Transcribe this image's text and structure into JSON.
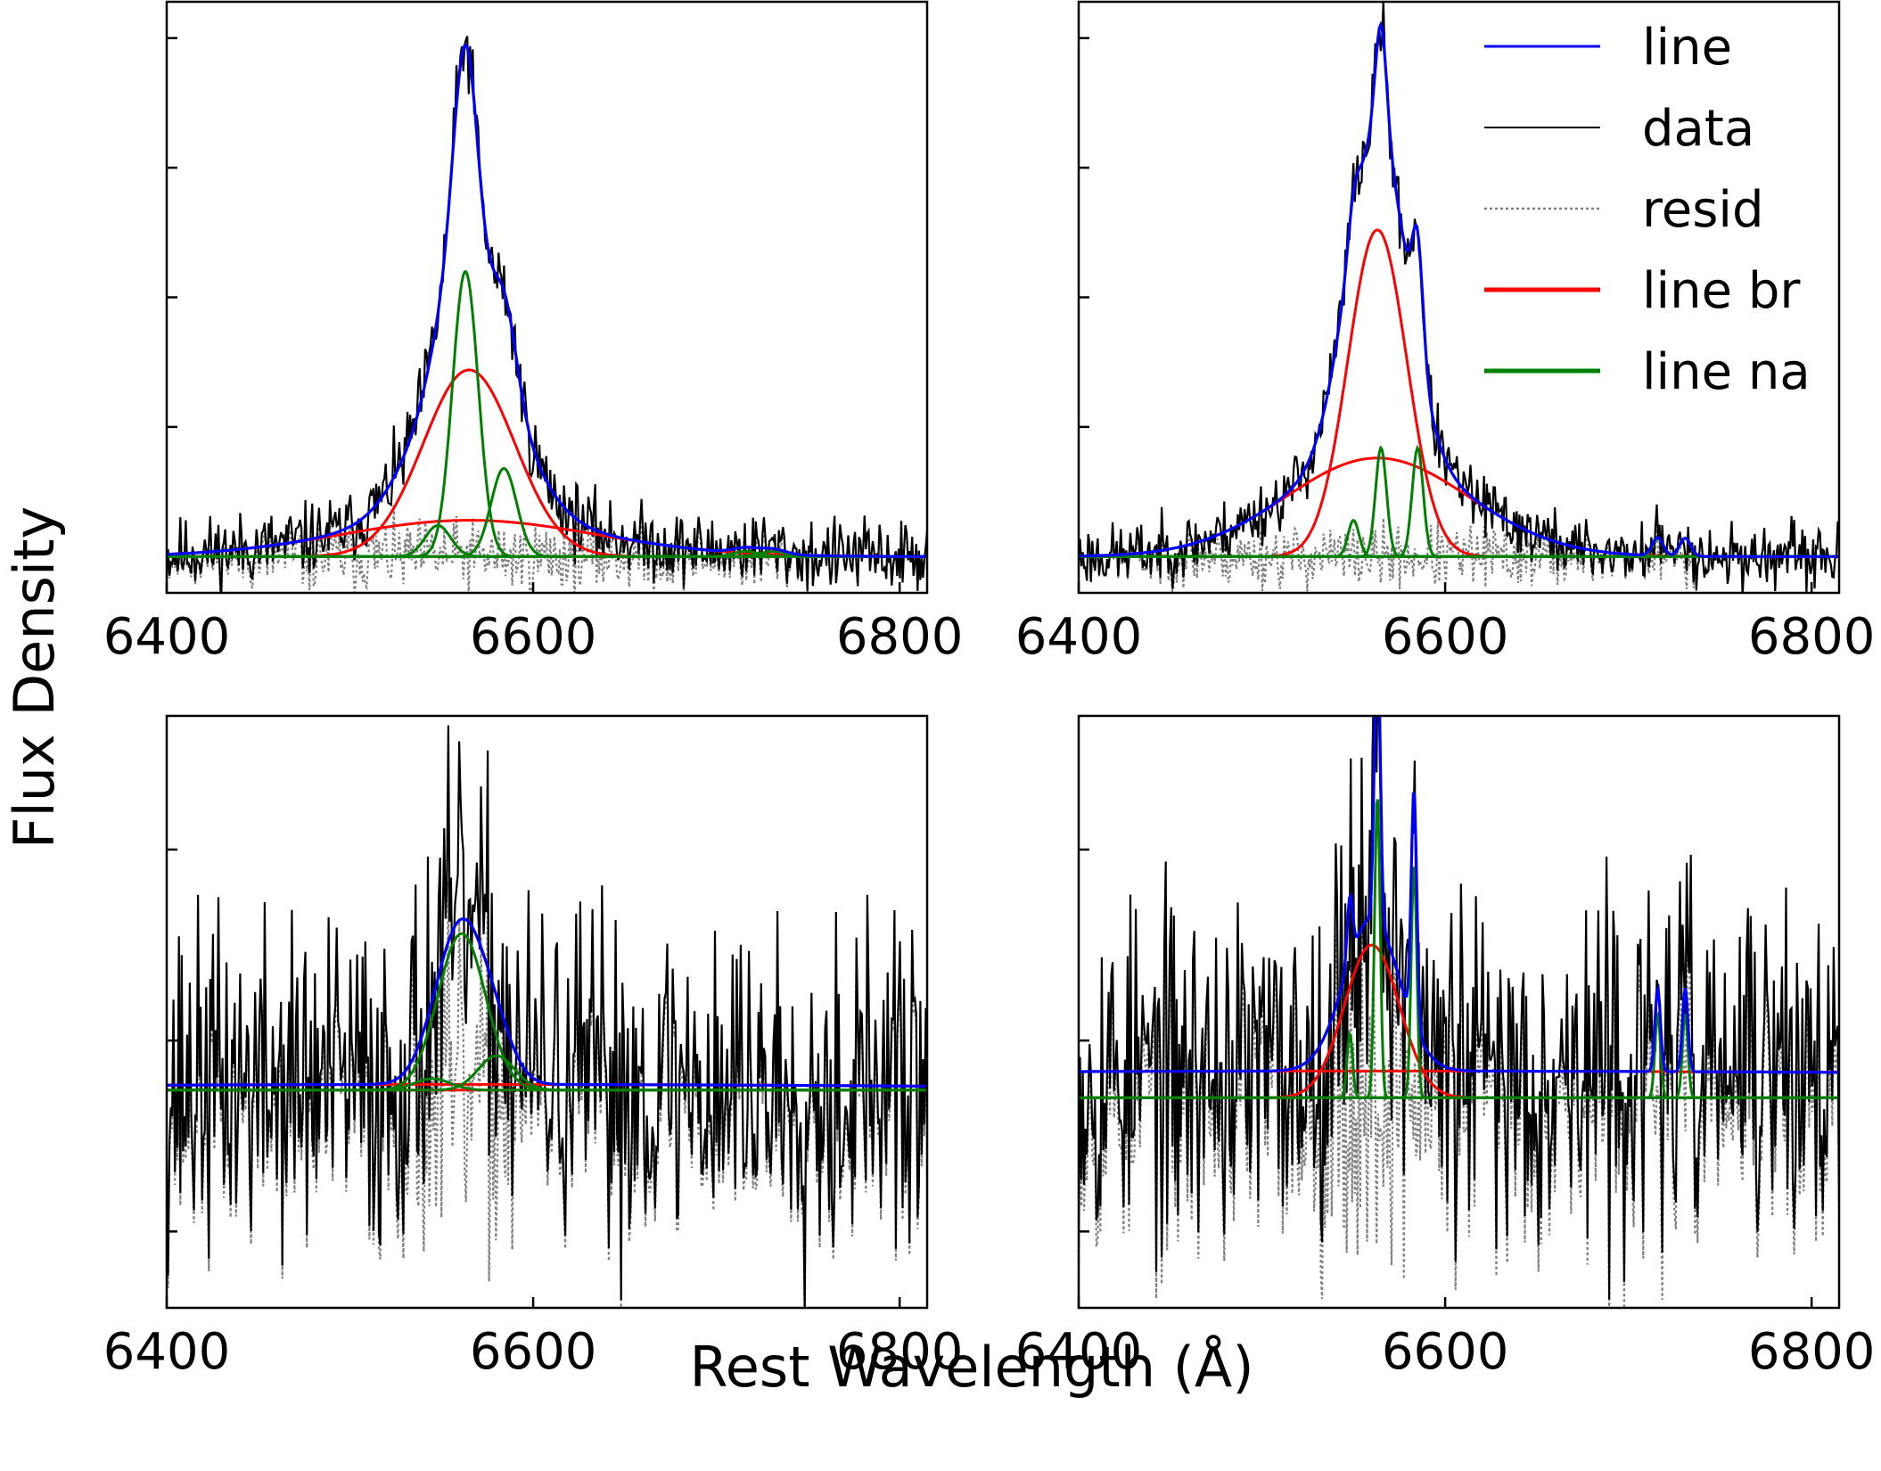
{
  "figure": {
    "xlabel": "Rest Wavelength (Å)",
    "ylabel": "Flux Density"
  },
  "legend": {
    "location": "top-right of upper-right panel",
    "entries": [
      {
        "label": "line",
        "color": "#0000ff",
        "style": "solid"
      },
      {
        "label": "data",
        "color": "#000000",
        "style": "solid"
      },
      {
        "label": "resid",
        "color": "#808080",
        "style": "dotted"
      },
      {
        "label": "line br",
        "color": "#ff0000",
        "style": "solid"
      },
      {
        "label": "line na",
        "color": "#008000",
        "style": "solid"
      }
    ]
  },
  "chart_data": [
    {
      "type": "line",
      "panel": "top-left",
      "xlim": [
        6400,
        6815
      ],
      "ylim": [
        -0.07,
        1.07
      ],
      "xticks": [
        6400,
        6600,
        6800
      ],
      "yticks_minor": [
        0.25,
        0.5,
        0.75,
        1.0
      ],
      "noise": 0.035,
      "seed": 11,
      "broad": [
        {
          "center": 6565,
          "amp": 0.36,
          "sigma": 25
        },
        {
          "center": 6565,
          "amp": 0.07,
          "sigma": 70
        }
      ],
      "narrow": [
        {
          "center": 6563,
          "amp": 0.55,
          "sigma": 7
        },
        {
          "center": 6584,
          "amp": 0.17,
          "sigma": 7
        },
        {
          "center": 6548,
          "amp": 0.06,
          "sigma": 7
        },
        {
          "center": 6716,
          "amp": 0.01,
          "sigma": 7
        },
        {
          "center": 6731,
          "amp": 0.01,
          "sigma": 7
        }
      ]
    },
    {
      "type": "line",
      "panel": "top-right",
      "xlim": [
        6400,
        6815
      ],
      "ylim": [
        -0.07,
        1.07
      ],
      "xticks": [
        6400,
        6600,
        6800
      ],
      "yticks_minor": [
        0.25,
        0.5,
        0.75,
        1.0
      ],
      "noise": 0.03,
      "seed": 23,
      "broad": [
        {
          "center": 6563,
          "amp": 0.63,
          "sigma": 16
        },
        {
          "center": 6563,
          "amp": 0.19,
          "sigma": 50
        }
      ],
      "narrow": [
        {
          "center": 6565,
          "amp": 0.21,
          "sigma": 3
        },
        {
          "center": 6585,
          "amp": 0.21,
          "sigma": 3
        },
        {
          "center": 6550,
          "amp": 0.07,
          "sigma": 3
        },
        {
          "center": 6716,
          "amp": 0.035,
          "sigma": 3
        },
        {
          "center": 6731,
          "amp": 0.035,
          "sigma": 3
        }
      ]
    },
    {
      "type": "line",
      "panel": "bottom-left",
      "xlim": [
        6400,
        6815
      ],
      "ylim": [
        -0.55,
        1.0
      ],
      "xticks": [
        6400,
        6600,
        6800
      ],
      "yticks_minor": [
        -0.35,
        0.15,
        0.65
      ],
      "noise": 0.22,
      "seed": 37,
      "baseline": 0.02,
      "broad": [
        {
          "center": 6560,
          "amp": 0.0,
          "sigma": 20
        },
        {
          "center": 6560,
          "amp": 0.015,
          "sigma": 300
        }
      ],
      "narrow": [
        {
          "center": 6561,
          "amp": 0.41,
          "sigma": 13
        },
        {
          "center": 6580,
          "amp": 0.09,
          "sigma": 10
        },
        {
          "center": 6545,
          "amp": 0.03,
          "sigma": 10
        }
      ]
    },
    {
      "type": "line",
      "panel": "bottom-right",
      "xlim": [
        6400,
        6815
      ],
      "ylim": [
        -0.55,
        1.0
      ],
      "xticks": [
        6400,
        6600,
        6800
      ],
      "yticks_minor": [
        -0.35,
        0.15,
        0.65
      ],
      "noise": 0.22,
      "seed": 53,
      "baseline": 0.0,
      "broad": [
        {
          "center": 6560,
          "amp": 0.4,
          "sigma": 15
        },
        {
          "center": 6560,
          "amp": 0.07,
          "sigma": 800
        }
      ],
      "narrow": [
        {
          "center": 6563,
          "amp": 0.8,
          "sigma": 1.5
        },
        {
          "center": 6583,
          "amp": 0.62,
          "sigma": 1.5
        },
        {
          "center": 6548,
          "amp": 0.17,
          "sigma": 1.5
        },
        {
          "center": 6716,
          "amp": 0.22,
          "sigma": 1.5
        },
        {
          "center": 6731,
          "amp": 0.22,
          "sigma": 1.5
        }
      ]
    }
  ]
}
